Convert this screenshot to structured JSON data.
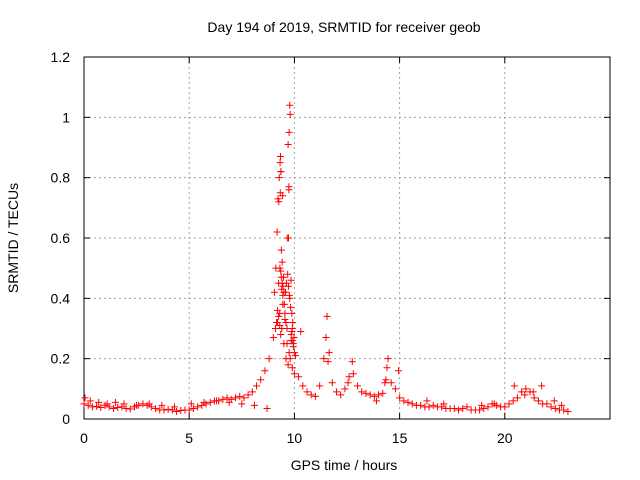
{
  "chart_data": {
    "type": "scatter",
    "title": "Day 194 of 2019, SRMTID for receiver geob",
    "xlabel": "GPS time / hours",
    "ylabel": "SRMTID / TECUs",
    "xlim": [
      0,
      25
    ],
    "ylim": [
      0,
      1.2
    ],
    "xticks": [
      0,
      5,
      10,
      15,
      20
    ],
    "yticks": [
      0,
      0.2,
      0.4,
      0.6,
      0.8,
      1,
      1.2
    ],
    "xtick_labels": [
      "0",
      "5",
      "10",
      "15",
      "20"
    ],
    "ytick_labels": [
      "0",
      "0.2",
      "0.4",
      "0.6",
      "0.8",
      "1",
      "1.2"
    ],
    "grid": true,
    "legend": "none",
    "marker": "+",
    "color": "#ff0000",
    "series": [
      {
        "name": "SRMTID",
        "x": [
          0.0,
          0.2,
          0.4,
          0.6,
          0.8,
          1.0,
          1.2,
          1.4,
          1.6,
          1.8,
          2.0,
          2.2,
          2.4,
          2.6,
          2.8,
          3.0,
          3.2,
          3.4,
          3.6,
          3.8,
          4.0,
          4.2,
          4.4,
          4.6,
          4.8,
          5.0,
          5.2,
          5.4,
          5.6,
          5.8,
          6.0,
          6.2,
          6.4,
          6.6,
          6.8,
          7.0,
          7.2,
          7.4,
          7.6,
          7.8,
          8.0,
          8.2,
          8.4,
          8.6,
          8.8,
          9.0,
          9.1,
          9.2,
          9.3,
          9.4,
          9.5,
          9.6,
          9.7,
          9.8,
          9.9,
          10.0,
          10.2,
          10.4,
          10.6,
          10.8,
          11.0,
          11.2,
          11.4,
          11.5,
          11.6,
          11.8,
          12.0,
          12.2,
          12.4,
          12.6,
          12.8,
          13.0,
          13.2,
          13.4,
          13.6,
          13.8,
          14.0,
          14.2,
          14.3,
          14.4,
          14.6,
          14.8,
          15.0,
          15.2,
          15.4,
          15.6,
          15.8,
          16.0,
          16.2,
          16.4,
          16.6,
          16.8,
          17.0,
          17.2,
          17.4,
          17.6,
          17.8,
          18.0,
          18.2,
          18.4,
          18.6,
          18.8,
          19.0,
          19.2,
          19.4,
          19.6,
          19.8,
          20.0,
          20.2,
          20.4,
          20.6,
          20.8,
          21.0,
          21.2,
          21.4,
          21.6,
          21.8,
          22.0,
          22.2,
          22.4,
          22.6,
          22.8,
          23.0,
          0.05,
          0.3,
          0.7,
          1.1,
          1.5,
          1.9,
          2.5,
          3.1,
          3.7,
          4.3,
          5.1,
          5.7,
          6.3,
          6.9,
          7.5,
          8.1,
          8.7,
          9.15,
          9.25,
          9.35,
          9.45,
          9.55,
          9.65,
          9.75,
          9.85,
          9.95,
          10.05,
          10.3,
          11.55,
          11.65,
          12.55,
          12.75,
          13.9,
          14.35,
          14.45,
          14.95,
          16.3,
          17.1,
          18.9,
          19.5,
          20.45,
          20.95,
          21.35,
          21.75,
          22.35,
          22.7,
          9.05,
          9.12,
          9.18,
          9.22,
          9.28,
          9.32,
          9.38,
          9.42,
          9.48,
          9.52,
          9.58,
          9.62,
          9.68,
          9.72,
          9.78,
          9.82,
          9.88,
          9.92,
          9.98,
          9.36,
          9.44,
          9.66,
          9.74,
          9.84,
          9.26,
          9.76,
          9.7,
          9.75,
          9.8,
          9.78,
          9.72,
          9.74,
          9.34,
          9.36,
          9.33,
          9.31,
          9.35,
          9.38,
          9.42,
          9.46,
          9.5,
          9.4,
          9.45,
          9.55,
          9.6,
          9.65,
          9.85,
          9.9,
          10.0,
          9.2,
          9.25,
          9.3,
          9.9,
          9.95,
          9.88
        ],
        "y": [
          0.05,
          0.045,
          0.04,
          0.042,
          0.038,
          0.045,
          0.04,
          0.035,
          0.038,
          0.04,
          0.035,
          0.033,
          0.04,
          0.045,
          0.05,
          0.045,
          0.04,
          0.035,
          0.03,
          0.03,
          0.032,
          0.03,
          0.025,
          0.028,
          0.03,
          0.03,
          0.035,
          0.04,
          0.045,
          0.05,
          0.055,
          0.06,
          0.06,
          0.065,
          0.07,
          0.065,
          0.07,
          0.075,
          0.07,
          0.08,
          0.09,
          0.11,
          0.13,
          0.16,
          0.2,
          0.27,
          0.3,
          0.32,
          0.35,
          0.3,
          0.25,
          0.2,
          0.18,
          0.2,
          0.17,
          0.15,
          0.14,
          0.11,
          0.09,
          0.08,
          0.075,
          0.11,
          0.2,
          0.27,
          0.19,
          0.12,
          0.09,
          0.08,
          0.1,
          0.14,
          0.15,
          0.11,
          0.09,
          0.085,
          0.08,
          0.075,
          0.08,
          0.085,
          0.12,
          0.17,
          0.12,
          0.1,
          0.07,
          0.06,
          0.055,
          0.05,
          0.045,
          0.045,
          0.04,
          0.04,
          0.045,
          0.04,
          0.04,
          0.035,
          0.035,
          0.035,
          0.03,
          0.035,
          0.04,
          0.03,
          0.03,
          0.03,
          0.035,
          0.04,
          0.05,
          0.045,
          0.04,
          0.04,
          0.05,
          0.06,
          0.07,
          0.09,
          0.1,
          0.09,
          0.07,
          0.06,
          0.05,
          0.05,
          0.04,
          0.035,
          0.03,
          0.03,
          0.025,
          0.07,
          0.06,
          0.055,
          0.05,
          0.055,
          0.05,
          0.045,
          0.05,
          0.045,
          0.04,
          0.05,
          0.055,
          0.06,
          0.055,
          0.05,
          0.045,
          0.035,
          0.32,
          0.45,
          0.28,
          0.38,
          0.33,
          0.25,
          0.22,
          0.26,
          0.24,
          0.21,
          0.29,
          0.34,
          0.22,
          0.12,
          0.19,
          0.06,
          0.13,
          0.2,
          0.16,
          0.06,
          0.05,
          0.045,
          0.05,
          0.11,
          0.08,
          0.09,
          0.11,
          0.06,
          0.045,
          0.42,
          0.5,
          0.62,
          0.73,
          0.8,
          0.85,
          0.56,
          0.52,
          0.47,
          0.38,
          0.42,
          0.45,
          0.48,
          0.44,
          0.4,
          0.37,
          0.35,
          0.32,
          0.27,
          0.82,
          0.74,
          0.6,
          0.77,
          0.46,
          0.72,
          0.41,
          0.91,
          0.95,
          1.01,
          1.04,
          0.6,
          0.76,
          0.87,
          0.82,
          0.75,
          0.5,
          0.49,
          0.47,
          0.45,
          0.44,
          0.42,
          0.43,
          0.41,
          0.35,
          0.32,
          0.3,
          0.28,
          0.26,
          0.22,
          0.36,
          0.34,
          0.31,
          0.3,
          0.25,
          0.29
        ]
      }
    ]
  }
}
